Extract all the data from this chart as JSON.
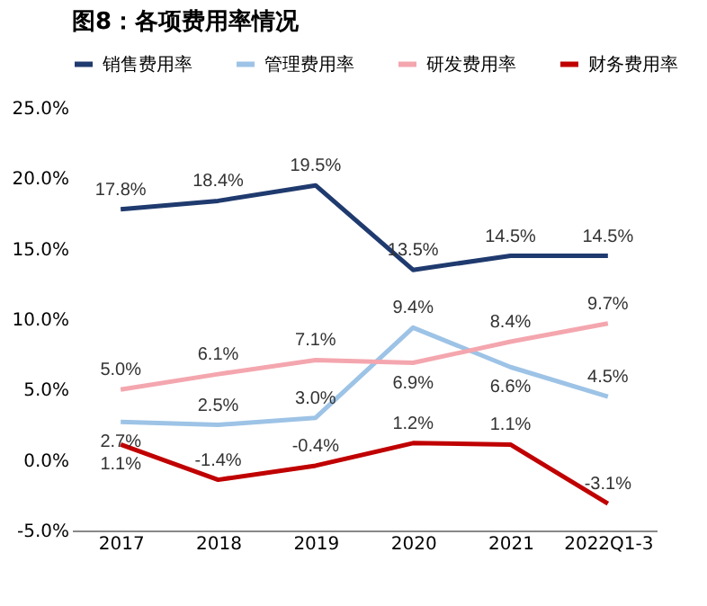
{
  "chart_data": {
    "type": "line",
    "title": "图8：各项费用率情况",
    "categories": [
      "2017",
      "2018",
      "2019",
      "2020",
      "2021",
      "2022Q1-3"
    ],
    "series": [
      {
        "name": "销售费用率",
        "color": "#1f3a6e",
        "values": [
          17.8,
          18.4,
          19.5,
          13.5,
          14.5,
          14.5
        ],
        "value_labels": [
          "17.8%",
          "18.4%",
          "19.5%",
          "13.5%",
          "14.5%",
          "14.5%"
        ]
      },
      {
        "name": "管理费用率",
        "color": "#9dc3e6",
        "values": [
          2.7,
          2.5,
          3.0,
          9.4,
          6.6,
          4.5
        ],
        "value_labels": [
          "2.7%",
          "2.5%",
          "3.0%",
          "9.4%",
          "6.6%",
          "4.5%"
        ]
      },
      {
        "name": "研发费用率",
        "color": "#f4a6ae",
        "values": [
          5.0,
          6.1,
          7.1,
          6.9,
          8.4,
          9.7
        ],
        "value_labels": [
          "5.0%",
          "6.1%",
          "7.1%",
          "6.9%",
          "8.4%",
          "9.7%"
        ]
      },
      {
        "name": "财务费用率",
        "color": "#c00000",
        "values": [
          1.1,
          -1.4,
          -0.4,
          1.2,
          1.1,
          -3.1
        ],
        "value_labels": [
          "1.1%",
          "-1.4%",
          "-0.4%",
          "1.2%",
          "1.1%",
          "-3.1%"
        ]
      }
    ],
    "ylim": [
      -5,
      25
    ],
    "yticks": [
      {
        "value": -5,
        "label": "-5.0%"
      },
      {
        "value": 0,
        "label": "0.0%"
      },
      {
        "value": 5,
        "label": "5.0%"
      },
      {
        "value": 10,
        "label": "10.0%"
      },
      {
        "value": 15,
        "label": "15.0%"
      },
      {
        "value": 20,
        "label": "20.0%"
      },
      {
        "value": 25,
        "label": "25.0%"
      }
    ],
    "grid": false,
    "legend": "top",
    "marker": "none",
    "line_style": "solid"
  }
}
